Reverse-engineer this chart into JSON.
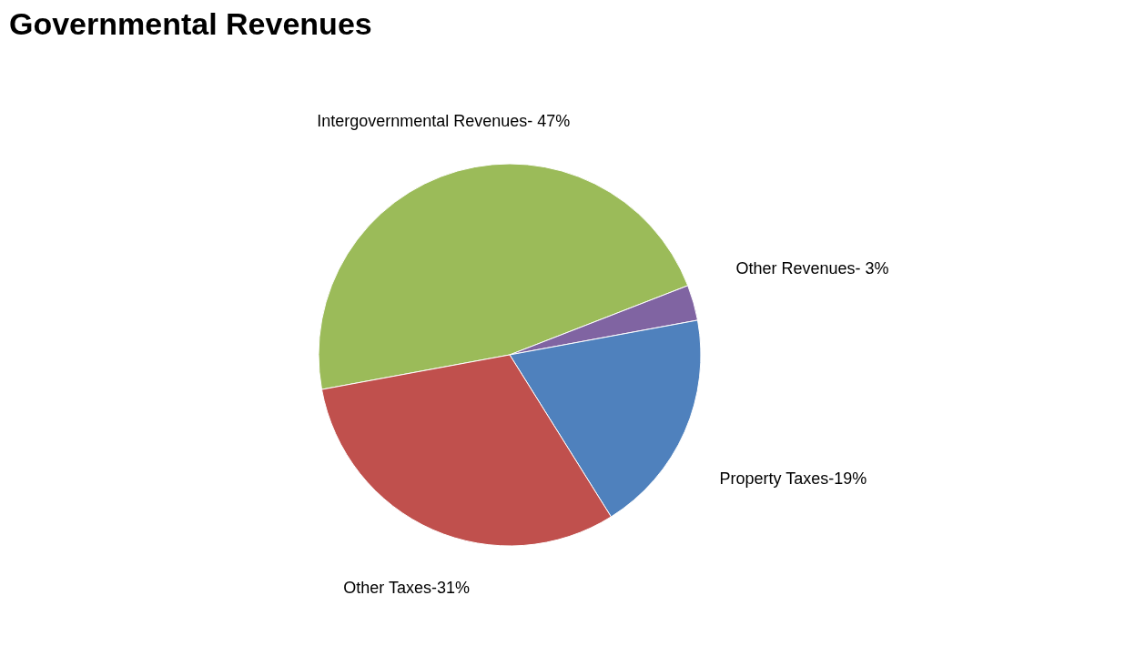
{
  "chart_data": {
    "type": "pie",
    "title": "Governmental Revenues",
    "categories": [
      "Intergovernmental Revenues- 47%",
      "Other Revenues-  3%",
      "Property Taxes-19%",
      "Other Taxes-31%"
    ],
    "values": [
      47,
      3,
      19,
      31
    ],
    "colors": [
      "#9bbb59",
      "#8064a2",
      "#4f81bd",
      "#c0504d"
    ],
    "legend": false
  }
}
